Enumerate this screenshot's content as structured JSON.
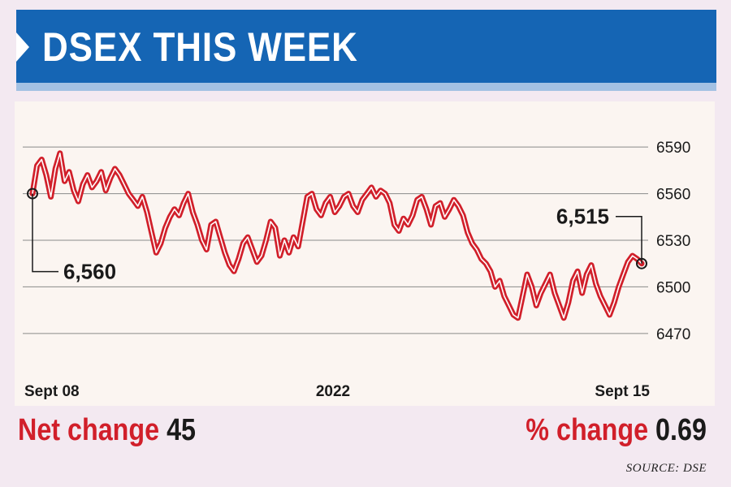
{
  "header": {
    "title": "DSEX THIS WEEK"
  },
  "footer": {
    "net_change_label": "Net change",
    "net_change_value": "45",
    "pct_change_label": "% change",
    "pct_change_value": "0.69",
    "source": "SOURCE: DSE"
  },
  "colors": {
    "banner": "#1565b4",
    "line": "#d11f2a",
    "label_red": "#d11f2a"
  },
  "chart_data": {
    "type": "line",
    "title": "DSEX THIS WEEK",
    "xlabel": "",
    "ylabel": "",
    "ylim": [
      6460,
      6600
    ],
    "yticks": [
      6590,
      6560,
      6530,
      6500,
      6470
    ],
    "y_tick_labels": [
      "6590",
      "6560",
      "6530",
      "6500",
      "6470"
    ],
    "x_tick_labels": [
      "Sept 08",
      "2022",
      "Sept 15"
    ],
    "grid": true,
    "annotations": [
      {
        "label": "6,560",
        "point": "start"
      },
      {
        "label": "6,515",
        "point": "end"
      }
    ],
    "series": [
      {
        "values": [
          6560,
          6578,
          6582,
          6572,
          6558,
          6576,
          6586,
          6568,
          6574,
          6562,
          6555,
          6566,
          6572,
          6564,
          6568,
          6574,
          6562,
          6570,
          6576,
          6572,
          6566,
          6560,
          6556,
          6552,
          6558,
          6548,
          6535,
          6522,
          6528,
          6538,
          6545,
          6550,
          6546,
          6554,
          6560,
          6548,
          6540,
          6530,
          6524,
          6540,
          6542,
          6532,
          6522,
          6514,
          6510,
          6518,
          6528,
          6532,
          6524,
          6516,
          6520,
          6530,
          6542,
          6538,
          6520,
          6530,
          6522,
          6532,
          6526,
          6542,
          6558,
          6560,
          6550,
          6546,
          6554,
          6558,
          6548,
          6552,
          6558,
          6560,
          6552,
          6548,
          6556,
          6560,
          6564,
          6558,
          6562,
          6560,
          6554,
          6540,
          6536,
          6544,
          6540,
          6546,
          6556,
          6558,
          6550,
          6540,
          6552,
          6554,
          6545,
          6550,
          6556,
          6552,
          6546,
          6535,
          6528,
          6524,
          6518,
          6515,
          6510,
          6500,
          6504,
          6494,
          6488,
          6482,
          6480,
          6494,
          6508,
          6500,
          6488,
          6496,
          6502,
          6508,
          6496,
          6488,
          6480,
          6490,
          6504,
          6510,
          6496,
          6508,
          6514,
          6502,
          6494,
          6488,
          6482,
          6490,
          6500,
          6508,
          6516,
          6520,
          6518,
          6515
        ]
      }
    ]
  }
}
